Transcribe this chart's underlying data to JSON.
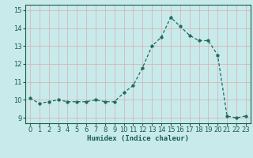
{
  "x": [
    0,
    1,
    2,
    3,
    4,
    5,
    6,
    7,
    8,
    9,
    10,
    11,
    12,
    13,
    14,
    15,
    16,
    17,
    18,
    19,
    20,
    21,
    22,
    23
  ],
  "y": [
    10.1,
    9.8,
    9.9,
    10.0,
    9.9,
    9.9,
    9.9,
    10.0,
    9.9,
    9.9,
    10.4,
    10.8,
    11.8,
    13.0,
    13.5,
    14.6,
    14.1,
    13.6,
    13.3,
    13.3,
    12.5,
    9.1,
    9.0,
    9.1
  ],
  "line_color": "#1a6b5a",
  "marker": "o",
  "marker_size": 2.5,
  "bg_color": "#c8eaea",
  "grid_color": "#b0d0cc",
  "xlabel": "Humidex (Indice chaleur)",
  "xlim": [
    -0.5,
    23.5
  ],
  "ylim": [
    8.7,
    15.3
  ],
  "yticks": [
    9,
    10,
    11,
    12,
    13,
    14,
    15
  ],
  "xticks": [
    0,
    1,
    2,
    3,
    4,
    5,
    6,
    7,
    8,
    9,
    10,
    11,
    12,
    13,
    14,
    15,
    16,
    17,
    18,
    19,
    20,
    21,
    22,
    23
  ],
  "title_color": "#1a5c50",
  "tick_color": "#1a5c50",
  "label_fontsize": 6.5,
  "tick_fontsize": 6.0
}
